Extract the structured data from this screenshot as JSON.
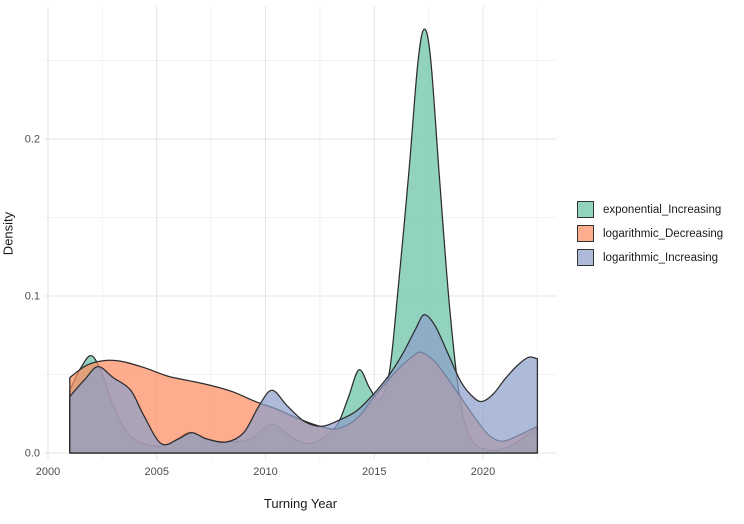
{
  "figure": {
    "background": "#ffffff"
  },
  "chart_data": {
    "type": "area",
    "subtype": "kde-density-overlay",
    "title": "",
    "xlabel": "Turning Year",
    "ylabel": "Density",
    "xlim": [
      2000,
      2023.4
    ],
    "ylim": [
      0,
      0.285
    ],
    "grid": true,
    "legend_position": "right",
    "fill_opacity": 0.72,
    "x_major_ticks": [
      2000,
      2005,
      2010,
      2015,
      2020
    ],
    "x_tick_labels": [
      "2000",
      "2005",
      "2010",
      "2015",
      "2020"
    ],
    "x_minor_ticks": [
      2002.5,
      2007.5,
      2012.5,
      2017.5,
      2022.5
    ],
    "y_major_ticks": [
      0.0,
      0.1,
      0.2
    ],
    "y_tick_labels": [
      "0.0",
      "0.1",
      "0.2"
    ],
    "y_minor_ticks": [
      0.05,
      0.15,
      0.25
    ],
    "series": [
      {
        "name": "exponential_Increasing",
        "color": "#66C2A5",
        "points": [
          [
            2001,
            0.04
          ],
          [
            2001.5,
            0.054
          ],
          [
            2002,
            0.062
          ],
          [
            2002.5,
            0.05
          ],
          [
            2003,
            0.03
          ],
          [
            2003.7,
            0.012
          ],
          [
            2004.6,
            0.005
          ],
          [
            2005.5,
            0.005
          ],
          [
            2006.5,
            0.013
          ],
          [
            2007.4,
            0.008
          ],
          [
            2008.3,
            0.007
          ],
          [
            2009.3,
            0.009
          ],
          [
            2010.3,
            0.018
          ],
          [
            2011.2,
            0.01
          ],
          [
            2011.9,
            0.006
          ],
          [
            2012.6,
            0.009
          ],
          [
            2013.3,
            0.018
          ],
          [
            2013.8,
            0.035
          ],
          [
            2014.3,
            0.053
          ],
          [
            2014.8,
            0.041
          ],
          [
            2015.25,
            0.034
          ],
          [
            2015.7,
            0.052
          ],
          [
            2016.1,
            0.105
          ],
          [
            2016.6,
            0.18
          ],
          [
            2017.0,
            0.248
          ],
          [
            2017.3,
            0.27
          ],
          [
            2017.6,
            0.25
          ],
          [
            2018.0,
            0.175
          ],
          [
            2018.45,
            0.095
          ],
          [
            2018.9,
            0.038
          ],
          [
            2019.4,
            0.01
          ],
          [
            2020.2,
            0.002
          ],
          [
            2021.2,
            0.004
          ],
          [
            2022.5,
            0.016
          ]
        ]
      },
      {
        "name": "logarithmic_Decreasing",
        "color": "#FC8D62",
        "points": [
          [
            2001,
            0.048
          ],
          [
            2001.8,
            0.056
          ],
          [
            2002.7,
            0.059
          ],
          [
            2003.5,
            0.058
          ],
          [
            2004.5,
            0.054
          ],
          [
            2005.5,
            0.049
          ],
          [
            2006.5,
            0.046
          ],
          [
            2007.5,
            0.043
          ],
          [
            2008.5,
            0.039
          ],
          [
            2009.5,
            0.033
          ],
          [
            2010.5,
            0.028
          ],
          [
            2011.5,
            0.022
          ],
          [
            2012.5,
            0.017
          ],
          [
            2013.3,
            0.0155
          ],
          [
            2014.2,
            0.022
          ],
          [
            2015,
            0.036
          ],
          [
            2016,
            0.052
          ],
          [
            2016.8,
            0.062
          ],
          [
            2017.2,
            0.064
          ],
          [
            2017.8,
            0.058
          ],
          [
            2018.4,
            0.047
          ],
          [
            2019,
            0.035
          ],
          [
            2019.7,
            0.021
          ],
          [
            2020.3,
            0.011
          ],
          [
            2020.9,
            0.0075
          ],
          [
            2021.6,
            0.011
          ],
          [
            2022.5,
            0.017
          ]
        ]
      },
      {
        "name": "logarithmic_Increasing",
        "color": "#8DA0CB",
        "points": [
          [
            2001,
            0.036
          ],
          [
            2001.7,
            0.047
          ],
          [
            2002.3,
            0.055
          ],
          [
            2003,
            0.048
          ],
          [
            2003.8,
            0.04
          ],
          [
            2004.4,
            0.024
          ],
          [
            2005.2,
            0.006
          ],
          [
            2006,
            0.009
          ],
          [
            2006.6,
            0.013
          ],
          [
            2007.3,
            0.009
          ],
          [
            2008.2,
            0.007
          ],
          [
            2009,
            0.013
          ],
          [
            2009.7,
            0.03
          ],
          [
            2010.3,
            0.04
          ],
          [
            2011,
            0.03
          ],
          [
            2011.8,
            0.02
          ],
          [
            2012.6,
            0.017
          ],
          [
            2013.4,
            0.021
          ],
          [
            2014.2,
            0.027
          ],
          [
            2015,
            0.038
          ],
          [
            2015.7,
            0.05
          ],
          [
            2016.3,
            0.063
          ],
          [
            2016.9,
            0.079
          ],
          [
            2017.3,
            0.088
          ],
          [
            2017.8,
            0.081
          ],
          [
            2018.4,
            0.063
          ],
          [
            2019,
            0.045
          ],
          [
            2019.6,
            0.035
          ],
          [
            2020,
            0.033
          ],
          [
            2020.5,
            0.038
          ],
          [
            2021,
            0.047
          ],
          [
            2021.6,
            0.056
          ],
          [
            2022.1,
            0.061
          ],
          [
            2022.5,
            0.06
          ]
        ]
      }
    ]
  },
  "colors": {
    "grid_major": "#E4E4E4",
    "grid_minor": "#F2F2F2",
    "outline": "#2D2D2D",
    "tick_text": "#4D4D4D",
    "title_text": "#1A1A1A"
  }
}
